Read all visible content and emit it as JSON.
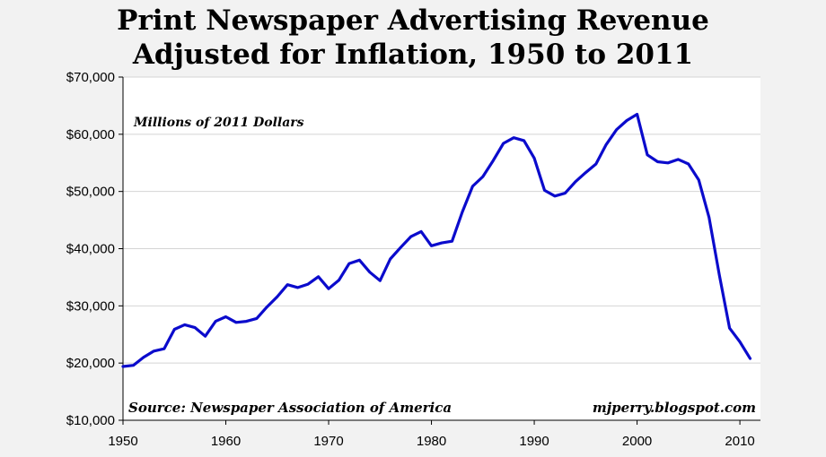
{
  "chart_data": {
    "type": "line",
    "title": [
      "Print Newspaper Advertising Revenue",
      "Adjusted for Inflation, 1950 to 2011"
    ],
    "subtitle": "Millions of 2011 Dollars",
    "source": "Source: Newspaper Association of America",
    "credit": "mjperry.blogspot.com",
    "xlabel": "",
    "ylabel": "",
    "xlim": [
      1950,
      2012
    ],
    "ylim": [
      10000,
      70000
    ],
    "x_ticks": [
      1950,
      1960,
      1970,
      1980,
      1990,
      2000,
      2010
    ],
    "y_ticks": [
      10000,
      20000,
      30000,
      40000,
      50000,
      60000,
      70000
    ],
    "y_tick_labels": [
      "$10,000",
      "$20,000",
      "$30,000",
      "$40,000",
      "$50,000",
      "$60,000",
      "$70,000"
    ],
    "grid": true,
    "series": [
      {
        "color": "#0b0bcc",
        "x": [
          1950,
          1951,
          1952,
          1953,
          1954,
          1955,
          1956,
          1957,
          1958,
          1959,
          1960,
          1961,
          1962,
          1963,
          1964,
          1965,
          1966,
          1967,
          1968,
          1969,
          1970,
          1971,
          1972,
          1973,
          1974,
          1975,
          1976,
          1977,
          1978,
          1979,
          1980,
          1981,
          1982,
          1983,
          1984,
          1985,
          1986,
          1987,
          1988,
          1989,
          1990,
          1991,
          1992,
          1993,
          1994,
          1995,
          1996,
          1997,
          1998,
          1999,
          2000,
          2001,
          2002,
          2003,
          2004,
          2005,
          2006,
          2007,
          2008,
          2009,
          2010,
          2011
        ],
        "y": [
          19400,
          19600,
          21000,
          22100,
          22500,
          25900,
          26700,
          26200,
          24700,
          27300,
          28100,
          27100,
          27300,
          27800,
          29800,
          31600,
          33700,
          33200,
          33800,
          35100,
          33000,
          34500,
          37400,
          38000,
          35900,
          34400,
          38200,
          40200,
          42100,
          43000,
          40500,
          41000,
          41300,
          46400,
          50900,
          52600,
          55400,
          58400,
          59400,
          58900,
          55800,
          50200,
          49200,
          49700,
          51700,
          53300,
          54800,
          58200,
          60800,
          62400,
          63500,
          56400,
          55200,
          55000,
          55600,
          54800,
          52000,
          45500,
          35400,
          26100,
          23700,
          20800
        ]
      }
    ]
  }
}
